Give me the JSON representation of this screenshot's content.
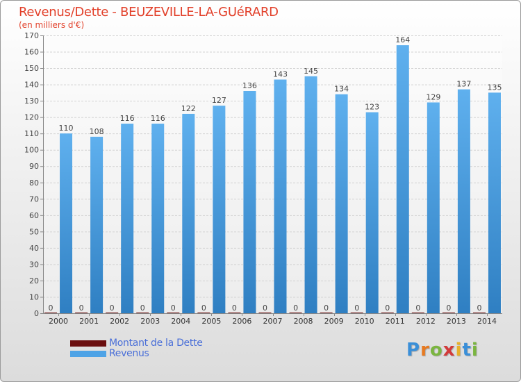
{
  "chart_data": {
    "type": "bar",
    "title": "Revenus/Dette - BEUZEVILLE-LA-GUéRARD",
    "subtitle": "(en milliers d'€)",
    "categories": [
      "2000",
      "2001",
      "2002",
      "2003",
      "2004",
      "2005",
      "2006",
      "2007",
      "2008",
      "2009",
      "2010",
      "2011",
      "2012",
      "2013",
      "2014"
    ],
    "series": [
      {
        "name": "Montant de la Dette",
        "values": [
          0,
          0,
          0,
          0,
          0,
          0,
          0,
          0,
          0,
          0,
          0,
          0,
          0,
          0,
          0
        ],
        "color": "#6b0f0f"
      },
      {
        "name": "Revenus",
        "values": [
          110,
          108,
          116,
          116,
          122,
          127,
          136,
          143,
          145,
          134,
          123,
          164,
          129,
          137,
          135
        ],
        "color": "#4ea3e6"
      }
    ],
    "ylim": [
      0,
      170
    ],
    "yticks": [
      0,
      10,
      20,
      30,
      40,
      50,
      60,
      70,
      80,
      90,
      100,
      110,
      120,
      130,
      140,
      150,
      160,
      170
    ],
    "grid": true,
    "legend_position": "bottom-left"
  },
  "logo": {
    "text": "Proxiti"
  }
}
